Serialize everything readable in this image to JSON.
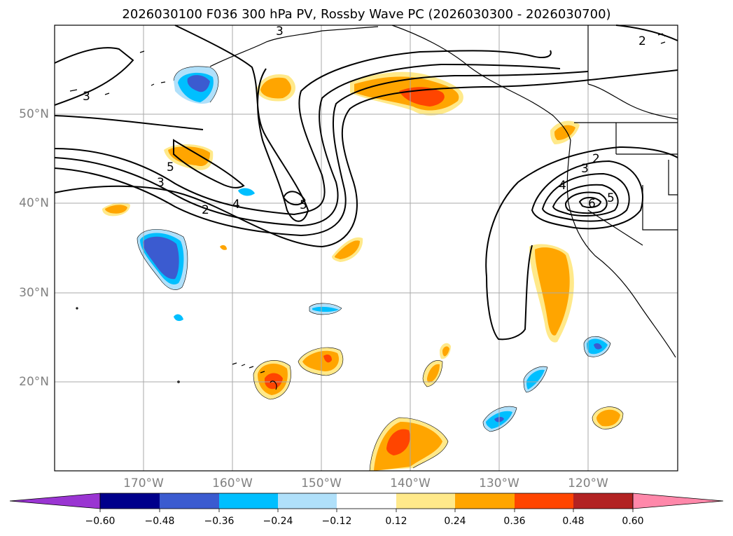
{
  "title": "2026030100 F036 300 hPa PV, Rossby Wave PC (2026030300 - 2026030700)",
  "map": {
    "lat_labels": [
      "50°N",
      "40°N",
      "30°N",
      "20°N"
    ],
    "lon_labels": [
      "170°W",
      "160°W",
      "150°W",
      "140°W",
      "130°W",
      "120°W"
    ],
    "contour_labels": [
      "2",
      "3",
      "4",
      "5",
      "2",
      "3",
      "4",
      "5",
      "6",
      "3",
      "5",
      "2",
      "3",
      "4",
      "5"
    ]
  },
  "colorbar": {
    "ticks": [
      "−0.60",
      "−0.48",
      "−0.36",
      "−0.24",
      "−0.12",
      "0.12",
      "0.24",
      "0.36",
      "0.48",
      "0.60"
    ],
    "colors": [
      "#9a35d2",
      "#00008b",
      "#3b5bd0",
      "#00bfff",
      "#b0e0fa",
      "#ffffff",
      "#ffe98a",
      "#ffa500",
      "#ff4500",
      "#b22222",
      "#ff88aa"
    ]
  },
  "colors": {
    "neg_light": "#b0e0fa",
    "neg_mid": "#00bfff",
    "neg_strong": "#3b5bd0",
    "pos_light": "#ffe98a",
    "pos_mid": "#ffa500",
    "pos_strong": "#ff4500",
    "grid": "#aaaaaa"
  }
}
